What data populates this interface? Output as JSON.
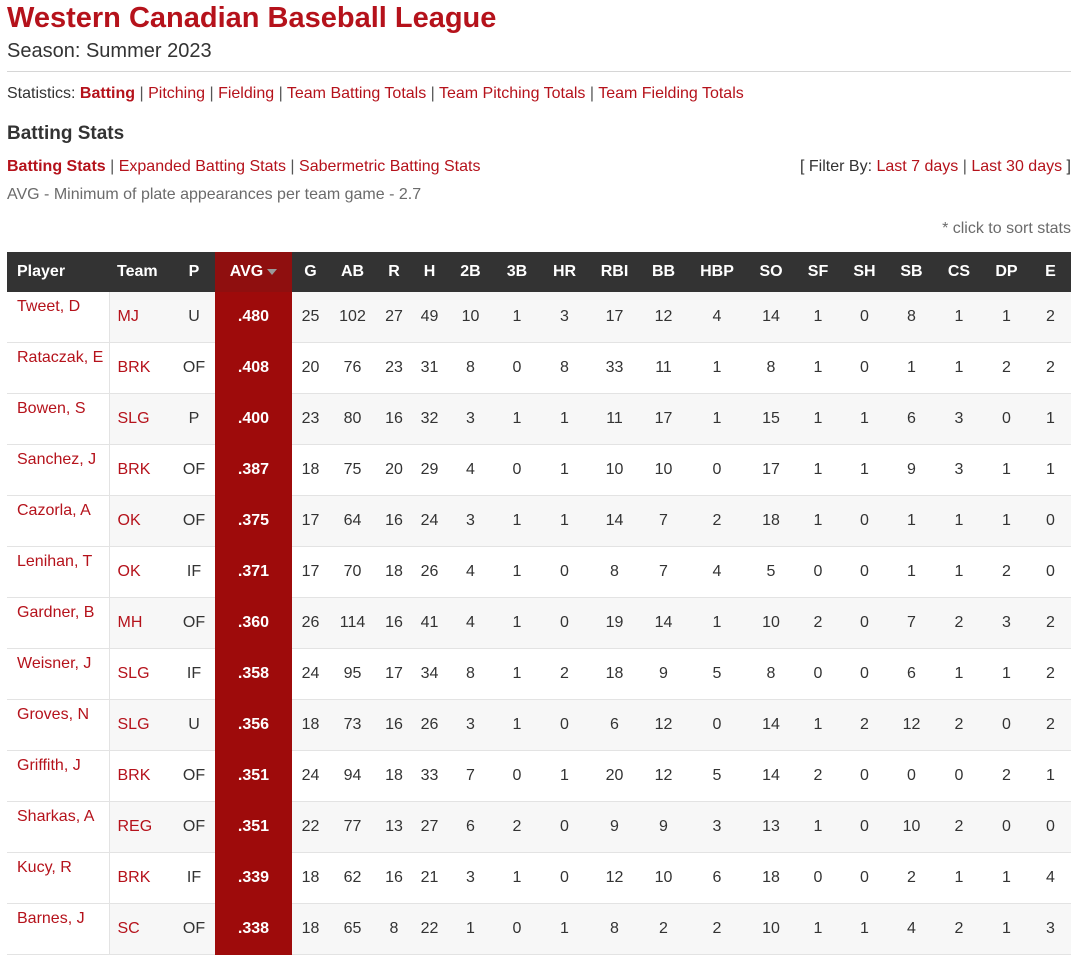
{
  "header": {
    "title": "Western Canadian Baseball League",
    "season": "Season: Summer 2023"
  },
  "stats_nav": {
    "prefix": "Statistics:",
    "items": [
      "Batting",
      "Pitching",
      "Fielding",
      "Team Batting Totals",
      "Team Pitching Totals",
      "Team Fielding Totals"
    ]
  },
  "section": {
    "title": "Batting Stats",
    "subnav": [
      "Batting Stats",
      "Expanded Batting Stats",
      "Sabermetric Batting Stats"
    ],
    "filter_prefix": "[ Filter By:",
    "filter_items": [
      "Last 7 days",
      "Last 30 days"
    ],
    "filter_suffix": "]",
    "note": "AVG - Minimum of plate appearances per team game - 2.7",
    "sort_note": "* click to sort stats"
  },
  "table": {
    "columns": [
      "Player",
      "Team",
      "P",
      "AVG",
      "G",
      "AB",
      "R",
      "H",
      "2B",
      "3B",
      "HR",
      "RBI",
      "BB",
      "HBP",
      "SO",
      "SF",
      "SH",
      "SB",
      "CS",
      "DP",
      "E"
    ],
    "rows": [
      [
        "Tweet, D",
        "MJ",
        "U",
        ".480",
        "25",
        "102",
        "27",
        "49",
        "10",
        "1",
        "3",
        "17",
        "12",
        "4",
        "14",
        "1",
        "0",
        "8",
        "1",
        "1",
        "2"
      ],
      [
        "Rataczak, E",
        "BRK",
        "OF",
        ".408",
        "20",
        "76",
        "23",
        "31",
        "8",
        "0",
        "8",
        "33",
        "11",
        "1",
        "8",
        "1",
        "0",
        "1",
        "1",
        "2",
        "2"
      ],
      [
        "Bowen, S",
        "SLG",
        "P",
        ".400",
        "23",
        "80",
        "16",
        "32",
        "3",
        "1",
        "1",
        "11",
        "17",
        "1",
        "15",
        "1",
        "1",
        "6",
        "3",
        "0",
        "1"
      ],
      [
        "Sanchez, J",
        "BRK",
        "OF",
        ".387",
        "18",
        "75",
        "20",
        "29",
        "4",
        "0",
        "1",
        "10",
        "10",
        "0",
        "17",
        "1",
        "1",
        "9",
        "3",
        "1",
        "1"
      ],
      [
        "Cazorla, A",
        "OK",
        "OF",
        ".375",
        "17",
        "64",
        "16",
        "24",
        "3",
        "1",
        "1",
        "14",
        "7",
        "2",
        "18",
        "1",
        "0",
        "1",
        "1",
        "1",
        "0"
      ],
      [
        "Lenihan, T",
        "OK",
        "IF",
        ".371",
        "17",
        "70",
        "18",
        "26",
        "4",
        "1",
        "0",
        "8",
        "7",
        "4",
        "5",
        "0",
        "0",
        "1",
        "1",
        "2",
        "0"
      ],
      [
        "Gardner, B",
        "MH",
        "OF",
        ".360",
        "26",
        "114",
        "16",
        "41",
        "4",
        "1",
        "0",
        "19",
        "14",
        "1",
        "10",
        "2",
        "0",
        "7",
        "2",
        "3",
        "2"
      ],
      [
        "Weisner, J",
        "SLG",
        "IF",
        ".358",
        "24",
        "95",
        "17",
        "34",
        "8",
        "1",
        "2",
        "18",
        "9",
        "5",
        "8",
        "0",
        "0",
        "6",
        "1",
        "1",
        "2"
      ],
      [
        "Groves, N",
        "SLG",
        "U",
        ".356",
        "18",
        "73",
        "16",
        "26",
        "3",
        "1",
        "0",
        "6",
        "12",
        "0",
        "14",
        "1",
        "2",
        "12",
        "2",
        "0",
        "2"
      ],
      [
        "Griffith, J",
        "BRK",
        "OF",
        ".351",
        "24",
        "94",
        "18",
        "33",
        "7",
        "0",
        "1",
        "20",
        "12",
        "5",
        "14",
        "2",
        "0",
        "0",
        "0",
        "2",
        "1"
      ],
      [
        "Sharkas, A",
        "REG",
        "OF",
        ".351",
        "22",
        "77",
        "13",
        "27",
        "6",
        "2",
        "0",
        "9",
        "9",
        "3",
        "13",
        "1",
        "0",
        "10",
        "2",
        "0",
        "0"
      ],
      [
        "Kucy, R",
        "BRK",
        "IF",
        ".339",
        "18",
        "62",
        "16",
        "21",
        "3",
        "1",
        "0",
        "12",
        "10",
        "6",
        "18",
        "0",
        "0",
        "2",
        "1",
        "1",
        "4"
      ],
      [
        "Barnes, J",
        "SC",
        "OF",
        ".338",
        "18",
        "65",
        "8",
        "22",
        "1",
        "0",
        "1",
        "8",
        "2",
        "2",
        "10",
        "1",
        "1",
        "4",
        "2",
        "1",
        "3"
      ]
    ]
  },
  "colors": {
    "brand_red": "#b5121b",
    "avg_highlight": "#9e0b0b",
    "header_bg": "#333333"
  },
  "icons": {
    "sort_indicator": "caret-down-icon"
  }
}
